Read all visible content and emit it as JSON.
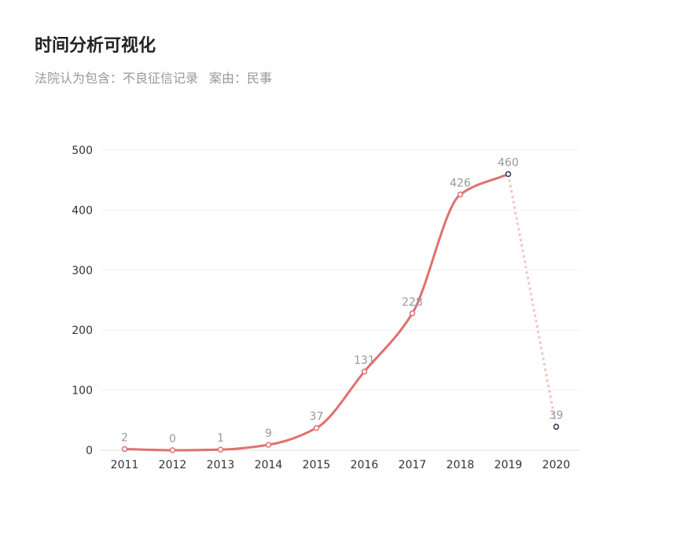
{
  "header": {
    "title": "时间分析可视化",
    "filter_court": "法院认为包含：不良征信记录",
    "filter_case": "案由：民事"
  },
  "chart_data": {
    "type": "line",
    "x": [
      "2011",
      "2012",
      "2013",
      "2014",
      "2015",
      "2016",
      "2017",
      "2018",
      "2019",
      "2020"
    ],
    "series": [
      {
        "values": [
          2,
          0,
          1,
          9,
          37,
          131,
          228,
          426,
          460,
          39
        ],
        "color": "#e07070",
        "projected_from_index": 8,
        "projected_color": "#f2c4c0"
      }
    ],
    "ylim": [
      0,
      500
    ],
    "yticks": [
      0,
      100,
      200,
      300,
      400,
      500
    ],
    "grid": true,
    "smooth": true,
    "data_labels": true
  }
}
